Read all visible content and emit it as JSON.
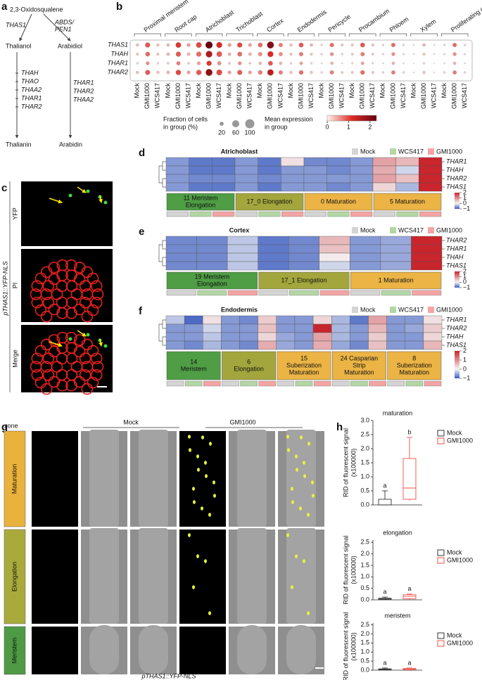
{
  "panel_labels": [
    "a",
    "b",
    "c",
    "d",
    "e",
    "f",
    "g",
    "h"
  ],
  "a": {
    "precursor": "2,3-Oxidosqualene",
    "left": {
      "enzyme": "THAS1",
      "product": "Thalianol",
      "enzymes": [
        "THAH",
        "THAO",
        "THAA2",
        "THAR1",
        "THAR2"
      ],
      "final": "Thalianin"
    },
    "right": {
      "enzyme_lines": [
        "ABDS/",
        "PEN1"
      ],
      "product": "Arabidiol",
      "enzymes": [
        "THAR1",
        "THAR2",
        "THAA2"
      ],
      "final": "Arabidin"
    }
  },
  "b": {
    "cell_types": [
      "Proximal meristem",
      "Root cap",
      "Atrichoblast",
      "Trichoblast",
      "Cortex",
      "Endodermis",
      "Pericycle",
      "Procambium",
      "Phloem",
      "Xylem",
      "Proliferating cell"
    ],
    "conditions": [
      "Mock",
      "GMI1000",
      "WCS417"
    ],
    "genes": [
      {
        "name": "THAS1",
        "fraction": [
          10,
          30,
          10,
          10,
          35,
          15,
          35,
          60,
          40,
          15,
          30,
          15,
          25,
          55,
          20,
          10,
          25,
          10,
          5,
          20,
          8,
          8,
          25,
          8,
          5,
          20,
          5,
          3,
          10,
          3,
          5,
          20,
          5
        ],
        "expression": [
          0.3,
          0.9,
          0.3,
          0.4,
          1.1,
          0.5,
          1.0,
          2.3,
          1.2,
          0.5,
          1.0,
          0.5,
          0.8,
          2.0,
          0.7,
          0.3,
          0.9,
          0.4,
          0.2,
          0.8,
          0.3,
          0.3,
          0.9,
          0.3,
          0.2,
          0.8,
          0.2,
          0.1,
          0.4,
          0.1,
          0.2,
          0.8,
          0.2
        ]
      },
      {
        "name": "THAH",
        "fraction": [
          8,
          25,
          8,
          10,
          30,
          12,
          30,
          50,
          35,
          12,
          25,
          12,
          20,
          40,
          18,
          8,
          20,
          8,
          5,
          15,
          5,
          6,
          20,
          6,
          4,
          15,
          4,
          2,
          8,
          2,
          4,
          15,
          4
        ],
        "expression": [
          0.3,
          0.8,
          0.3,
          0.4,
          0.9,
          0.4,
          0.8,
          1.6,
          0.9,
          0.4,
          0.8,
          0.4,
          0.6,
          1.2,
          0.6,
          0.3,
          0.7,
          0.3,
          0.2,
          0.6,
          0.2,
          0.3,
          0.7,
          0.3,
          0.2,
          0.6,
          0.2,
          0.1,
          0.3,
          0.1,
          0.2,
          0.6,
          0.2
        ]
      },
      {
        "name": "THAR1",
        "fraction": [
          5,
          15,
          5,
          6,
          18,
          6,
          15,
          30,
          18,
          6,
          15,
          6,
          10,
          25,
          10,
          5,
          12,
          5,
          3,
          10,
          3,
          4,
          12,
          4,
          3,
          10,
          3,
          1,
          5,
          1,
          3,
          10,
          3
        ],
        "expression": [
          0.2,
          0.6,
          0.2,
          0.3,
          0.7,
          0.3,
          0.5,
          1.1,
          0.6,
          0.3,
          0.6,
          0.3,
          0.4,
          0.9,
          0.4,
          0.2,
          0.5,
          0.2,
          0.1,
          0.4,
          0.1,
          0.2,
          0.5,
          0.2,
          0.1,
          0.4,
          0.1,
          0.1,
          0.2,
          0.1,
          0.1,
          0.4,
          0.1
        ]
      },
      {
        "name": "THAR2",
        "fraction": [
          10,
          28,
          10,
          12,
          32,
          14,
          32,
          55,
          38,
          14,
          28,
          14,
          22,
          45,
          20,
          9,
          22,
          9,
          5,
          18,
          6,
          7,
          22,
          7,
          5,
          18,
          5,
          2,
          9,
          2,
          5,
          18,
          5
        ],
        "expression": [
          0.3,
          0.9,
          0.3,
          0.4,
          1.0,
          0.5,
          0.9,
          1.9,
          1.0,
          0.5,
          0.9,
          0.5,
          0.7,
          1.5,
          0.7,
          0.3,
          0.8,
          0.3,
          0.2,
          0.7,
          0.3,
          0.3,
          0.8,
          0.3,
          0.2,
          0.7,
          0.2,
          0.1,
          0.3,
          0.1,
          0.2,
          0.7,
          0.2
        ]
      }
    ],
    "size_legend": {
      "title": [
        "Fraction of cells",
        "in group (%)"
      ],
      "ticks": [
        20,
        60,
        100
      ]
    },
    "color_legend": {
      "title": [
        "Mean expression",
        "in group"
      ],
      "ticks": [
        0,
        1,
        2
      ],
      "clim": [
        0,
        2.3
      ]
    },
    "colors": [
      "#fff5f0",
      "#de2d26",
      "#67000d"
    ]
  },
  "c": {
    "channels": [
      "YFP",
      "PI",
      "Merge"
    ],
    "construct": "pTHAS1::YFP-NLS"
  },
  "heatmap_legend": {
    "conditions": [
      "Mock",
      "WCS417",
      "GMI1000"
    ],
    "colors": [
      "#d4d4d4",
      "#b3d6a5",
      "#f4a4a4"
    ],
    "scale_ticks": [
      2,
      1,
      0,
      {
        "value": -1,
        "label": "−1"
      }
    ],
    "clim": [
      -1,
      2
    ],
    "colormap": [
      "#3a5bbf",
      "#f5f5f5",
      "#c8252c"
    ]
  },
  "d": {
    "title": "Atrichoblast",
    "rows": [
      "THAR1",
      "THAH",
      "THAR2",
      "THAS1"
    ],
    "values": [
      [
        -0.6,
        -0.8,
        -0.8,
        -0.6,
        -0.8,
        0.2,
        -0.7,
        -0.7,
        -0.6,
        0.8,
        0.6,
        2.0
      ],
      [
        -0.6,
        -0.8,
        -0.8,
        -0.6,
        -0.8,
        -0.6,
        -0.6,
        -0.7,
        -0.6,
        0.7,
        -0.2,
        2.0
      ],
      [
        -0.6,
        -0.7,
        -0.7,
        -0.6,
        -0.7,
        -0.6,
        -0.6,
        -0.6,
        -0.6,
        0.8,
        0.5,
        2.0
      ],
      [
        -0.6,
        -0.8,
        -0.8,
        -0.6,
        -0.8,
        -0.6,
        -0.6,
        -0.7,
        -0.6,
        0.3,
        -0.4,
        2.0
      ]
    ],
    "groups": [
      {
        "lines": [
          "11 Meristem",
          "Elongation"
        ],
        "color": "#4f9d45"
      },
      {
        "lines": [
          "17_0 Elongation"
        ],
        "color": "#a3a63c"
      },
      {
        "lines": [
          "0 Maturation"
        ],
        "color": "#ebb445"
      },
      {
        "lines": [
          "5 Maturation"
        ],
        "color": "#ebb445"
      }
    ]
  },
  "e": {
    "title": "Cortex",
    "rows": [
      "THAR2",
      "THAR1",
      "THAH",
      "THAS1"
    ],
    "values": [
      [
        -0.7,
        -0.7,
        -0.3,
        -0.8,
        -0.7,
        0.6,
        -0.6,
        -0.5,
        2.0
      ],
      [
        -0.7,
        -0.7,
        -0.3,
        -0.8,
        -0.7,
        0.5,
        -0.6,
        -0.5,
        2.0
      ],
      [
        -0.7,
        -0.7,
        -0.3,
        -0.8,
        -0.7,
        0.1,
        -0.6,
        -0.5,
        2.0
      ],
      [
        -0.7,
        -0.7,
        -0.3,
        -0.8,
        -0.7,
        -0.2,
        -0.6,
        -0.5,
        2.0
      ]
    ],
    "groups": [
      {
        "lines": [
          "19 Meristem",
          "Elongation"
        ],
        "color": "#4f9d45"
      },
      {
        "lines": [
          "17_1 Elongation"
        ],
        "color": "#a3a63c"
      },
      {
        "lines": [
          "1 Maturation"
        ],
        "color": "#ebb445"
      }
    ]
  },
  "f": {
    "title": "Endodermis",
    "rows": [
      "THAR1",
      "THAR2",
      "THAH",
      "THAS1"
    ],
    "values": [
      [
        -0.3,
        -0.9,
        0.2,
        -0.6,
        -0.7,
        0.4,
        -0.6,
        -0.6,
        0.3,
        -0.4,
        -0.8,
        0.8,
        -0.6,
        -0.6,
        0.2
      ],
      [
        -0.6,
        -0.6,
        -0.2,
        -0.6,
        -0.6,
        0.5,
        -0.6,
        -0.6,
        2.0,
        -0.4,
        -0.6,
        0.6,
        -0.6,
        -0.5,
        0.4
      ],
      [
        -0.6,
        -0.6,
        -0.3,
        -0.6,
        -0.6,
        0.3,
        -0.5,
        -0.6,
        0.8,
        -0.4,
        -0.6,
        0.4,
        -0.6,
        -0.6,
        0.3
      ],
      [
        -0.6,
        -0.7,
        -0.4,
        -0.6,
        -0.7,
        0.7,
        -0.5,
        -0.6,
        0.7,
        -0.5,
        -0.7,
        0.5,
        -0.6,
        -0.6,
        0.6
      ]
    ],
    "groups": [
      {
        "lines": [
          "14",
          "Meristem"
        ],
        "color": "#4f9d45"
      },
      {
        "lines": [
          "6",
          "Elongation"
        ],
        "color": "#a3a63c"
      },
      {
        "lines": [
          "15",
          "Suberization",
          "Maturation"
        ],
        "color": "#ebb445"
      },
      {
        "lines": [
          "24 Casparian",
          "Strip",
          "Maturation"
        ],
        "color": "#ebb445"
      },
      {
        "lines": [
          "8",
          "Suberization",
          "Maturation"
        ],
        "color": "#ebb445"
      }
    ]
  },
  "g": {
    "zone_header": "zone",
    "treatments": [
      "Mock",
      "GMI1000"
    ],
    "zones": [
      {
        "name": "Maturation",
        "color": "#e9b23d"
      },
      {
        "name": "Elongation",
        "color": "#a8ab3c"
      },
      {
        "name": "Meristem",
        "color": "#4e9a45"
      }
    ],
    "construct": "pTHAS1::YFP-NLS"
  },
  "chart_data": [
    {
      "type": "box",
      "title": "maturation",
      "ylabel": [
        "RID of fluorescent signal",
        "(x100000)"
      ],
      "ylim": [
        0,
        3
      ],
      "yticks": [
        {
          "value": 0,
          "label": "0.0"
        },
        0.5,
        {
          "value": 1,
          "label": "1.0"
        },
        1.5,
        {
          "value": 2,
          "label": "2.0"
        },
        2.5,
        {
          "value": 3,
          "label": "3.0"
        }
      ],
      "series": [
        {
          "name": "Mock",
          "color": "#333333",
          "min": 0,
          "q1": 0,
          "median": 0,
          "q3": 0.2,
          "max": 0.5,
          "letter": "a"
        },
        {
          "name": "GMI1000",
          "color": "#f0504a",
          "min": 0.15,
          "q1": 0.2,
          "median": 0.6,
          "q3": 1.65,
          "max": 2.4,
          "letter": "b"
        }
      ]
    },
    {
      "type": "box",
      "title": "elongation",
      "ylabel": [
        "RID of fluorescent signal",
        "(x100000)"
      ],
      "ylim": [
        0,
        2.6
      ],
      "yticks": [
        {
          "value": 0,
          "label": "0.0"
        },
        0.5,
        {
          "value": 1,
          "label": "1.0"
        },
        1.5,
        {
          "value": 2,
          "label": "2.0"
        },
        2.5
      ],
      "series": [
        {
          "name": "Mock",
          "color": "#333333",
          "min": 0,
          "q1": 0.02,
          "median": 0.04,
          "q3": 0.07,
          "max": 0.12,
          "letter": "a"
        },
        {
          "name": "GMI1000",
          "color": "#f0504a",
          "min": 0,
          "q1": 0.05,
          "median": 0.15,
          "q3": 0.22,
          "max": 0.25,
          "letter": "a"
        }
      ]
    },
    {
      "type": "box",
      "title": "meristem",
      "ylabel": [
        "RID of fluorescent signal",
        "(x100000)"
      ],
      "ylim": [
        0,
        2.6
      ],
      "yticks": [
        {
          "value": 0,
          "label": "0.0"
        },
        0.5,
        {
          "value": 1,
          "label": "1.0"
        },
        1.5,
        {
          "value": 2,
          "label": "2.0"
        },
        2.5
      ],
      "series": [
        {
          "name": "Mock",
          "color": "#333333",
          "min": 0,
          "q1": 0.02,
          "median": 0.04,
          "q3": 0.07,
          "max": 0.12,
          "letter": "a"
        },
        {
          "name": "GMI1000",
          "color": "#f0504a",
          "min": 0,
          "q1": 0.03,
          "median": 0.05,
          "q3": 0.1,
          "max": 0.12,
          "letter": "a"
        }
      ]
    }
  ]
}
